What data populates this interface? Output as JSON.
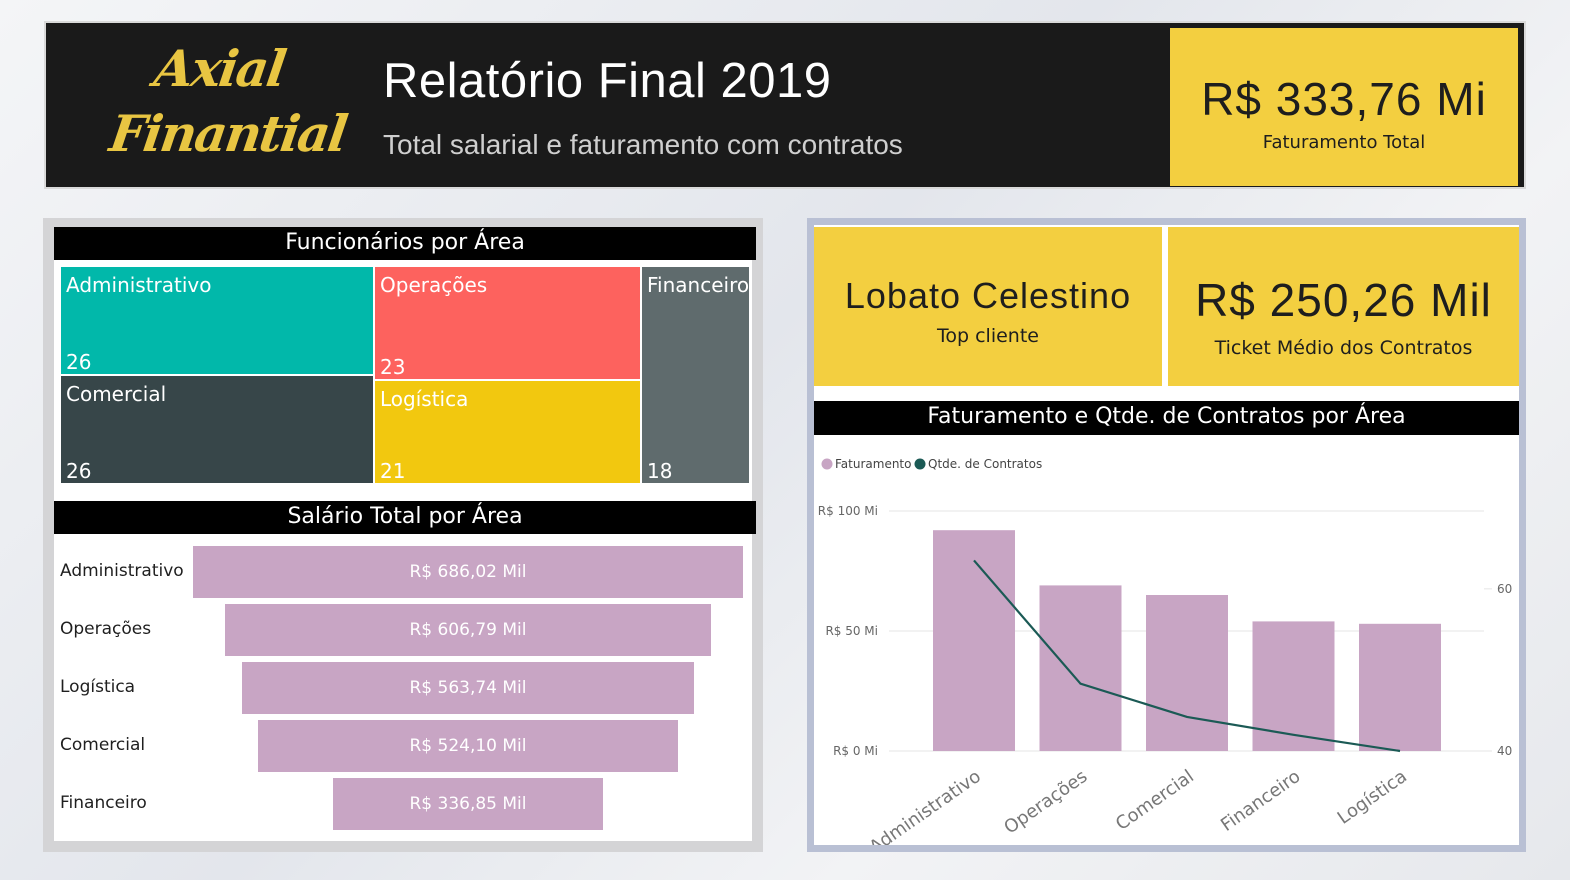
{
  "header": {
    "logo_line1": "Axial",
    "logo_line2": "Finantial",
    "title": "Relatório Final 2019",
    "subtitle": "Total salarial e faturamento com contratos",
    "total": {
      "value": "R$ 333,76 Mi",
      "label": "Faturamento Total"
    }
  },
  "kpis": {
    "top_client": {
      "value": "Lobato Celestino",
      "label": "Top cliente"
    },
    "ticket": {
      "value": "R$ 250,26 Mil",
      "label": "Ticket Médio dos Contratos"
    }
  },
  "treemap": {
    "title": "Funcionários por Área",
    "items": [
      {
        "name": "Administrativo",
        "value": "26",
        "color": "#01b8aa"
      },
      {
        "name": "Operações",
        "value": "23",
        "color": "#fd625e"
      },
      {
        "name": "Financeiro",
        "value": "",
        "color": "#5f6b6d"
      },
      {
        "name": "Comercial",
        "value": "26",
        "color": "#374649"
      },
      {
        "name": "Logística",
        "value": "21",
        "color": "#f2c80f"
      },
      {
        "name": "Financeiro_value",
        "value": "18",
        "color": "#5f6b6d"
      }
    ]
  },
  "funnel": {
    "title": "Salário Total por Área",
    "rows": [
      {
        "label": "Administrativo",
        "value": "R$ 686,02 Mil",
        "amount": 686.02
      },
      {
        "label": "Operações",
        "value": "R$ 606,79 Mil",
        "amount": 606.79
      },
      {
        "label": "Logística",
        "value": "R$ 563,74 Mil",
        "amount": 563.74
      },
      {
        "label": "Comercial",
        "value": "R$ 524,10 Mil",
        "amount": 524.1
      },
      {
        "label": "Financeiro",
        "value": "R$ 336,85 Mil",
        "amount": 336.85
      }
    ],
    "bar_color": "#c8a5c4"
  },
  "combo": {
    "title": "Faturamento e Qtde. de Contratos por Área",
    "legend": [
      "Faturamento",
      "Qtde. de Contratos"
    ],
    "colors": {
      "bar": "#c8a5c4",
      "line": "#1b5a55"
    }
  },
  "chart_data": {
    "type": "bar",
    "title": "Faturamento e Qtde. de Contratos por Área",
    "categories": [
      "Administrativo",
      "Operações",
      "Comercial",
      "Financeiro",
      "Logística"
    ],
    "series": [
      {
        "name": "Faturamento",
        "type": "bar",
        "axis": "left",
        "values": [
          92,
          69,
          65,
          54,
          53
        ]
      },
      {
        "name": "Qtde. de Contratos",
        "type": "line",
        "axis": "right",
        "values": [
          63.5,
          48.3,
          44.2,
          42.0,
          40.0
        ]
      }
    ],
    "y_left": {
      "ticks": [
        "R$ 0 Mi",
        "R$ 50 Mi",
        "R$ 100 Mi"
      ],
      "range": [
        0,
        100
      ]
    },
    "y_right": {
      "ticks": [
        "40",
        "60"
      ],
      "range": [
        40,
        69.6
      ]
    },
    "legend_position": "top-left",
    "grid": true
  }
}
